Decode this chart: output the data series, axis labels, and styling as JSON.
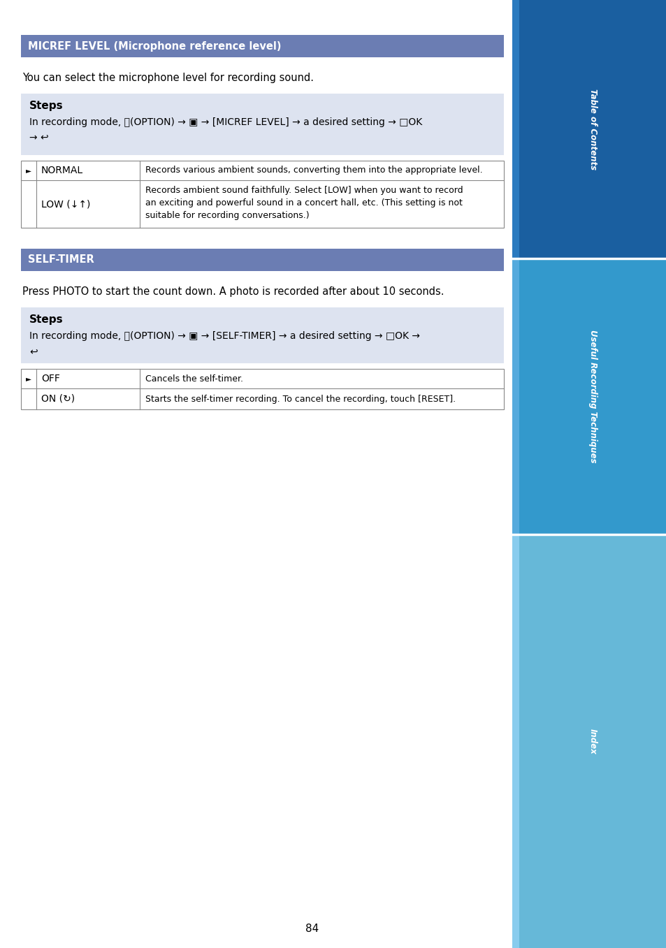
{
  "page_bg": "#ffffff",
  "header_bg": "#6b7db3",
  "header_text_color": "#ffffff",
  "steps_bg": "#dde3f0",
  "table_border": "#888888",
  "body_text_color": "#000000",
  "section1_header": "MICREF LEVEL (Microphone reference level)",
  "section1_intro": "You can select the microphone level for recording sound.",
  "section2_header": "SELF-TIMER",
  "section2_intro": "Press PHOTO to start the count down. A photo is recorded after about 10 seconds.",
  "page_number": "84",
  "sidebar_top_color": "#1a5fa0",
  "sidebar_top_accent": "#2a7abf",
  "sidebar_mid_color": "#3399cc",
  "sidebar_mid_accent": "#55aadd",
  "sidebar_bot_color": "#66b8d8",
  "sidebar_bot_accent": "#88ccee",
  "sidebar_label_top": "Table of Contents",
  "sidebar_label_mid": "Useful Recording Techniques",
  "sidebar_label_bot": "Index"
}
